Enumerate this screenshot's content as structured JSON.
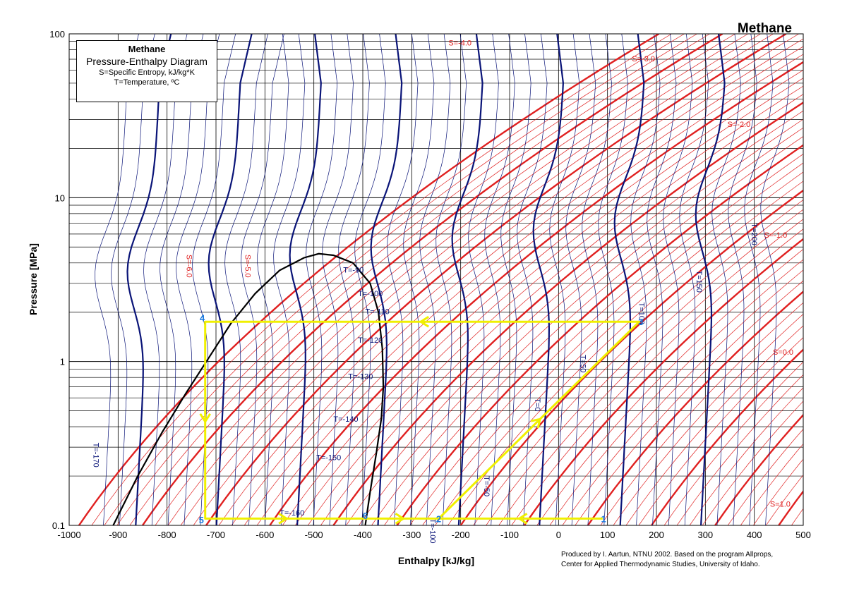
{
  "chart_data": {
    "type": "line",
    "title": "Methane",
    "xlabel": "Enthalpy [kJ/kg]",
    "ylabel": "Pressure [MPa]",
    "xlim": [
      -1000,
      500
    ],
    "ylim": [
      0.1,
      100
    ],
    "yscale": "log",
    "grid": true,
    "x_ticks": [
      "-1000",
      "-900",
      "-800",
      "-700",
      "-600",
      "-500",
      "-400",
      "-300",
      "-200",
      "-100",
      "0",
      "100",
      "200",
      "300",
      "400",
      "500"
    ],
    "y_ticks": [
      "0.1",
      "1",
      "10",
      "100"
    ],
    "legend": {
      "title": "Methane",
      "subtitle": "Pressure-Enthalpy Diagram",
      "line1": "S=Specific Entropy, kJ/kg*K",
      "line2": "T=Temperature, ºC",
      "placement": "top-left"
    },
    "saturation_dome": {
      "x": [
        -910,
        -860,
        -810,
        -760,
        -715,
        -670,
        -620,
        -570,
        -520,
        -490,
        -460,
        -420,
        -385,
        -368,
        -360,
        -358,
        -362,
        -372,
        -385,
        -395
      ],
      "y": [
        0.1,
        0.2,
        0.37,
        0.65,
        1.05,
        1.7,
        2.6,
        3.6,
        4.3,
        4.55,
        4.45,
        4.0,
        3.0,
        2.0,
        1.2,
        0.7,
        0.45,
        0.28,
        0.16,
        0.1
      ]
    },
    "isotherm_labels": [
      {
        "label": "T=-170",
        "x": -950,
        "y": 0.32
      },
      {
        "label": "T=-160",
        "x": -570,
        "y": 0.115
      },
      {
        "label": "T=-150",
        "x": -495,
        "y": 0.25
      },
      {
        "label": "T=-140",
        "x": -460,
        "y": 0.43
      },
      {
        "label": "T=-130",
        "x": -430,
        "y": 0.78
      },
      {
        "label": "T=-120",
        "x": -410,
        "y": 1.3
      },
      {
        "label": "T=-110",
        "x": -395,
        "y": 1.95
      },
      {
        "label": "T=-100",
        "x": -410,
        "y": 2.5
      },
      {
        "label": "T=-90",
        "x": -440,
        "y": 3.5
      },
      {
        "label": "T=-100",
        "x": -262,
        "y": 0.11
      },
      {
        "label": "T=-50",
        "x": -152,
        "y": 0.2
      },
      {
        "label": "T=0",
        "x": -48,
        "y": 0.6
      },
      {
        "label": "T=50",
        "x": 45,
        "y": 1.1
      },
      {
        "label": "T=100",
        "x": 165,
        "y": 2.3
      },
      {
        "label": "T=150",
        "x": 282,
        "y": 3.6
      },
      {
        "label": "T=200",
        "x": 395,
        "y": 7
      }
    ],
    "entropy_labels": [
      {
        "label": "S=-6.0",
        "x": -760,
        "y": 4.5
      },
      {
        "label": "S=-5.0",
        "x": -640,
        "y": 4.5
      },
      {
        "label": "S=-4.0",
        "x": -225,
        "y": 85
      },
      {
        "label": "S=-3.0",
        "x": 150,
        "y": 68
      },
      {
        "label": "S=-2.0",
        "x": 345,
        "y": 27
      },
      {
        "label": "S=-1.0",
        "x": 420,
        "y": 5.7
      },
      {
        "label": "S=0.0",
        "x": 438,
        "y": 1.1
      },
      {
        "label": "S=1.0",
        "x": 432,
        "y": 0.13
      }
    ],
    "cycle": {
      "x": [
        90,
        -245,
        165,
        -722,
        -722,
        -395,
        -245
      ],
      "y": [
        0.11,
        0.11,
        1.75,
        1.75,
        0.11,
        0.11,
        0.11
      ]
    },
    "cycle_points": [
      {
        "label": "1",
        "x": 92,
        "y": 0.11
      },
      {
        "label": "2",
        "x": -245,
        "y": 0.11
      },
      {
        "label": "3",
        "x": 168,
        "y": 1.75
      },
      {
        "label": "4",
        "x": -728,
        "y": 1.85
      },
      {
        "label": "5",
        "x": -730,
        "y": 0.108
      },
      {
        "label": "6",
        "x": -395,
        "y": 0.115
      }
    ],
    "colors": {
      "isotherm": "#0a1478",
      "isotherm_major": "#0a1478",
      "isentrope": "#e02020",
      "dome": "#000000",
      "cycle": "#f0f000",
      "point_label": "#1a7ae0",
      "grid": "#000000"
    }
  },
  "text": {
    "corner_title": "Methane",
    "credit_line1": "Produced by I. Aartun, NTNU 2002. Based on the program Allprops,",
    "credit_line2": "Center for Applied Thermodynamic Studies, University of Idaho."
  }
}
